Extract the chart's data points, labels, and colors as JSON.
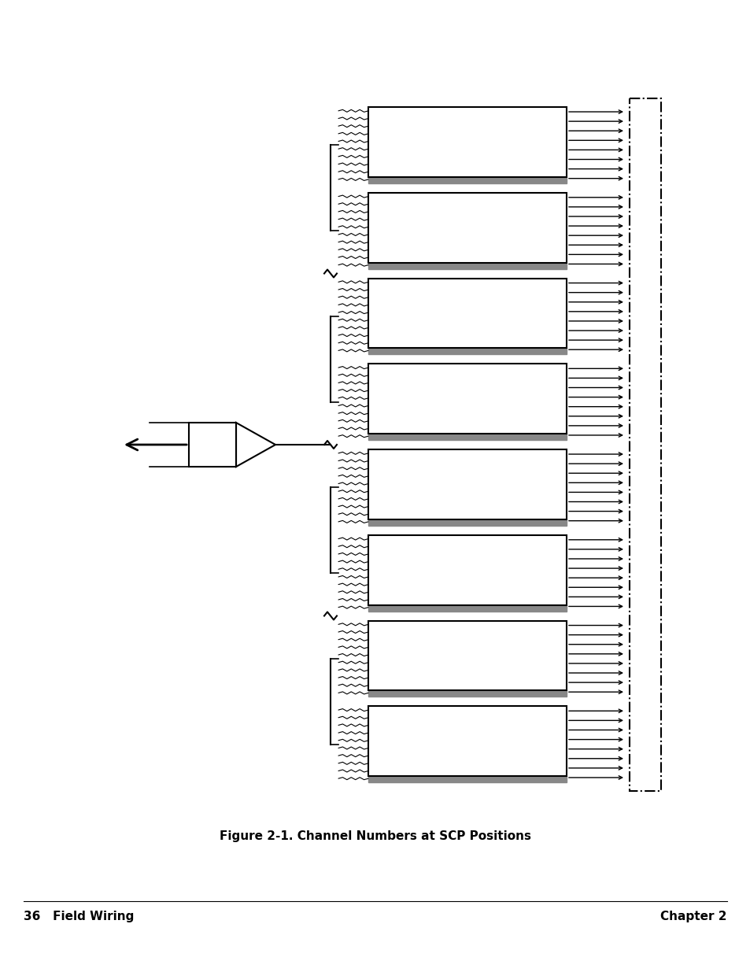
{
  "title": "Figure 2-1. Channel Numbers at SCP Positions",
  "footer_left": "36   Field Wiring",
  "footer_right": "Chapter 2",
  "num_scp": 8,
  "fig_width": 9.54,
  "fig_height": 12.35,
  "bg_color": "#ffffff",
  "text_color": "#000000",
  "box_color": "#000000",
  "dashed_box_color": "#000000"
}
